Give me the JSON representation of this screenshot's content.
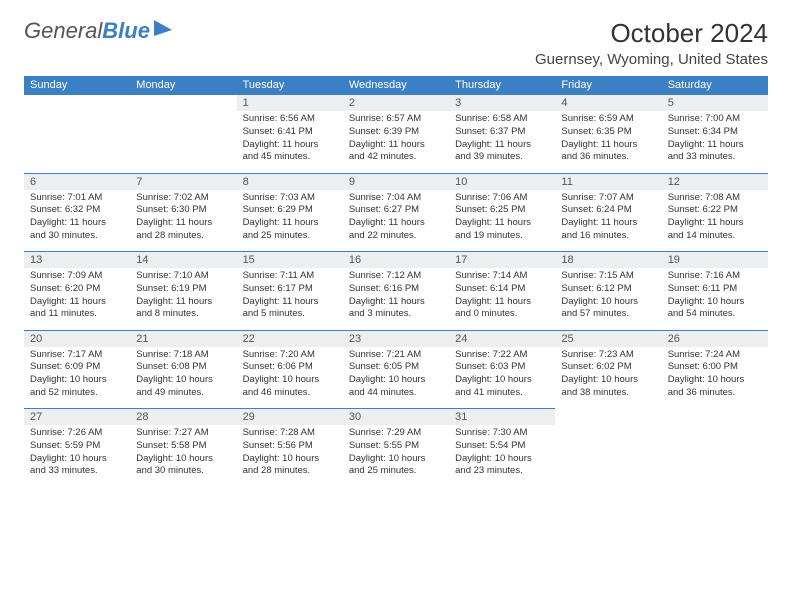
{
  "logo": {
    "word1": "General",
    "word2": "Blue"
  },
  "title": "October 2024",
  "location": "Guernsey, Wyoming, United States",
  "colors": {
    "header_bg": "#3b7fc4",
    "header_text": "#ffffff",
    "daynum_bg": "#eceeef",
    "row_divider": "#3b7fc4",
    "body_bg": "#ffffff",
    "text": "#333333"
  },
  "day_headers": [
    "Sunday",
    "Monday",
    "Tuesday",
    "Wednesday",
    "Thursday",
    "Friday",
    "Saturday"
  ],
  "weeks": [
    {
      "nums": [
        "",
        "",
        "1",
        "2",
        "3",
        "4",
        "5"
      ],
      "cells": [
        null,
        null,
        {
          "sunrise": "Sunrise: 6:56 AM",
          "sunset": "Sunset: 6:41 PM",
          "daylight": "Daylight: 11 hours and 45 minutes."
        },
        {
          "sunrise": "Sunrise: 6:57 AM",
          "sunset": "Sunset: 6:39 PM",
          "daylight": "Daylight: 11 hours and 42 minutes."
        },
        {
          "sunrise": "Sunrise: 6:58 AM",
          "sunset": "Sunset: 6:37 PM",
          "daylight": "Daylight: 11 hours and 39 minutes."
        },
        {
          "sunrise": "Sunrise: 6:59 AM",
          "sunset": "Sunset: 6:35 PM",
          "daylight": "Daylight: 11 hours and 36 minutes."
        },
        {
          "sunrise": "Sunrise: 7:00 AM",
          "sunset": "Sunset: 6:34 PM",
          "daylight": "Daylight: 11 hours and 33 minutes."
        }
      ]
    },
    {
      "nums": [
        "6",
        "7",
        "8",
        "9",
        "10",
        "11",
        "12"
      ],
      "cells": [
        {
          "sunrise": "Sunrise: 7:01 AM",
          "sunset": "Sunset: 6:32 PM",
          "daylight": "Daylight: 11 hours and 30 minutes."
        },
        {
          "sunrise": "Sunrise: 7:02 AM",
          "sunset": "Sunset: 6:30 PM",
          "daylight": "Daylight: 11 hours and 28 minutes."
        },
        {
          "sunrise": "Sunrise: 7:03 AM",
          "sunset": "Sunset: 6:29 PM",
          "daylight": "Daylight: 11 hours and 25 minutes."
        },
        {
          "sunrise": "Sunrise: 7:04 AM",
          "sunset": "Sunset: 6:27 PM",
          "daylight": "Daylight: 11 hours and 22 minutes."
        },
        {
          "sunrise": "Sunrise: 7:06 AM",
          "sunset": "Sunset: 6:25 PM",
          "daylight": "Daylight: 11 hours and 19 minutes."
        },
        {
          "sunrise": "Sunrise: 7:07 AM",
          "sunset": "Sunset: 6:24 PM",
          "daylight": "Daylight: 11 hours and 16 minutes."
        },
        {
          "sunrise": "Sunrise: 7:08 AM",
          "sunset": "Sunset: 6:22 PM",
          "daylight": "Daylight: 11 hours and 14 minutes."
        }
      ]
    },
    {
      "nums": [
        "13",
        "14",
        "15",
        "16",
        "17",
        "18",
        "19"
      ],
      "cells": [
        {
          "sunrise": "Sunrise: 7:09 AM",
          "sunset": "Sunset: 6:20 PM",
          "daylight": "Daylight: 11 hours and 11 minutes."
        },
        {
          "sunrise": "Sunrise: 7:10 AM",
          "sunset": "Sunset: 6:19 PM",
          "daylight": "Daylight: 11 hours and 8 minutes."
        },
        {
          "sunrise": "Sunrise: 7:11 AM",
          "sunset": "Sunset: 6:17 PM",
          "daylight": "Daylight: 11 hours and 5 minutes."
        },
        {
          "sunrise": "Sunrise: 7:12 AM",
          "sunset": "Sunset: 6:16 PM",
          "daylight": "Daylight: 11 hours and 3 minutes."
        },
        {
          "sunrise": "Sunrise: 7:14 AM",
          "sunset": "Sunset: 6:14 PM",
          "daylight": "Daylight: 11 hours and 0 minutes."
        },
        {
          "sunrise": "Sunrise: 7:15 AM",
          "sunset": "Sunset: 6:12 PM",
          "daylight": "Daylight: 10 hours and 57 minutes."
        },
        {
          "sunrise": "Sunrise: 7:16 AM",
          "sunset": "Sunset: 6:11 PM",
          "daylight": "Daylight: 10 hours and 54 minutes."
        }
      ]
    },
    {
      "nums": [
        "20",
        "21",
        "22",
        "23",
        "24",
        "25",
        "26"
      ],
      "cells": [
        {
          "sunrise": "Sunrise: 7:17 AM",
          "sunset": "Sunset: 6:09 PM",
          "daylight": "Daylight: 10 hours and 52 minutes."
        },
        {
          "sunrise": "Sunrise: 7:18 AM",
          "sunset": "Sunset: 6:08 PM",
          "daylight": "Daylight: 10 hours and 49 minutes."
        },
        {
          "sunrise": "Sunrise: 7:20 AM",
          "sunset": "Sunset: 6:06 PM",
          "daylight": "Daylight: 10 hours and 46 minutes."
        },
        {
          "sunrise": "Sunrise: 7:21 AM",
          "sunset": "Sunset: 6:05 PM",
          "daylight": "Daylight: 10 hours and 44 minutes."
        },
        {
          "sunrise": "Sunrise: 7:22 AM",
          "sunset": "Sunset: 6:03 PM",
          "daylight": "Daylight: 10 hours and 41 minutes."
        },
        {
          "sunrise": "Sunrise: 7:23 AM",
          "sunset": "Sunset: 6:02 PM",
          "daylight": "Daylight: 10 hours and 38 minutes."
        },
        {
          "sunrise": "Sunrise: 7:24 AM",
          "sunset": "Sunset: 6:00 PM",
          "daylight": "Daylight: 10 hours and 36 minutes."
        }
      ]
    },
    {
      "nums": [
        "27",
        "28",
        "29",
        "30",
        "31",
        "",
        ""
      ],
      "cells": [
        {
          "sunrise": "Sunrise: 7:26 AM",
          "sunset": "Sunset: 5:59 PM",
          "daylight": "Daylight: 10 hours and 33 minutes."
        },
        {
          "sunrise": "Sunrise: 7:27 AM",
          "sunset": "Sunset: 5:58 PM",
          "daylight": "Daylight: 10 hours and 30 minutes."
        },
        {
          "sunrise": "Sunrise: 7:28 AM",
          "sunset": "Sunset: 5:56 PM",
          "daylight": "Daylight: 10 hours and 28 minutes."
        },
        {
          "sunrise": "Sunrise: 7:29 AM",
          "sunset": "Sunset: 5:55 PM",
          "daylight": "Daylight: 10 hours and 25 minutes."
        },
        {
          "sunrise": "Sunrise: 7:30 AM",
          "sunset": "Sunset: 5:54 PM",
          "daylight": "Daylight: 10 hours and 23 minutes."
        },
        null,
        null
      ]
    }
  ]
}
